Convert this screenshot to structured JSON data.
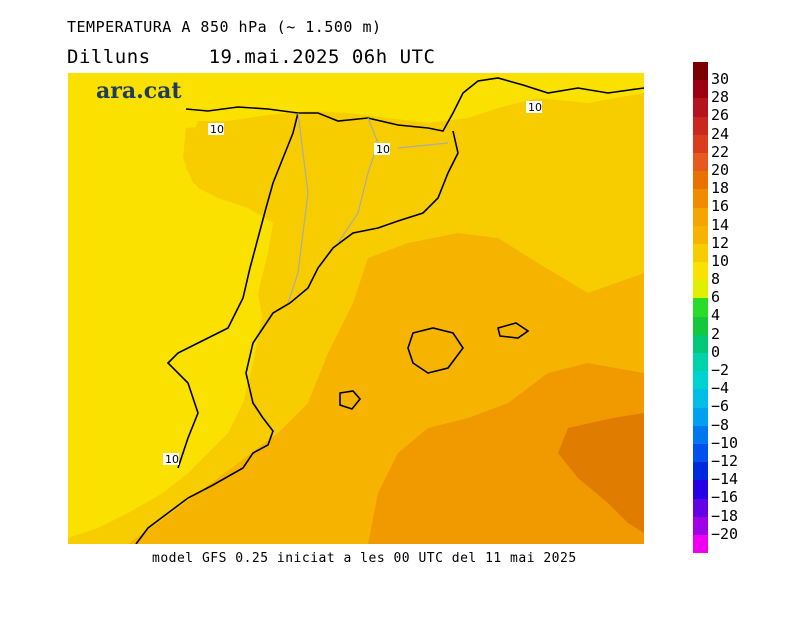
{
  "header": {
    "title": "TEMPERATURA A 850 hPa (~ 1.500 m)",
    "day": "Dilluns",
    "datetime": "19.mai.2025 06h UTC"
  },
  "logo": {
    "text": "ara.cat",
    "color": "#1c3d5e"
  },
  "footer": {
    "model_text": "model GFS 0.25 iniciat a les 00 UTC del 11 mai 2025"
  },
  "map": {
    "contour_labels": [
      "10",
      "10",
      "10",
      "10"
    ],
    "colors": {
      "band_8_10": "#fae100",
      "band_10_12": "#f8cd00",
      "band_12_14": "#f6b400",
      "band_14_16": "#f19a00",
      "band_16_18": "#e07c00",
      "border": "#000000",
      "internal_border": "#aaaaaa"
    }
  },
  "color_scale": {
    "labels": [
      "30",
      "28",
      "26",
      "24",
      "22",
      "20",
      "18",
      "16",
      "14",
      "12",
      "10",
      "8",
      "6",
      "4",
      "2",
      "0",
      "-2",
      "-4",
      "-6",
      "-8",
      "-10",
      "-12",
      "-14",
      "-16",
      "-18",
      "-20"
    ],
    "colors": [
      "#7a0000",
      "#9c0010",
      "#b4141e",
      "#c8281e",
      "#dc3c1e",
      "#e65a1e",
      "#ea7300",
      "#f08c00",
      "#f4a500",
      "#f6b400",
      "#f8cd00",
      "#fae100",
      "#e1f000",
      "#28dc28",
      "#14c83c",
      "#00c878",
      "#00d2aa",
      "#00d2d2",
      "#00bee6",
      "#00a0f0",
      "#0078f0",
      "#0050f0",
      "#0028dc",
      "#2800e6",
      "#6400e6",
      "#a000e6",
      "#f000f0"
    ]
  }
}
